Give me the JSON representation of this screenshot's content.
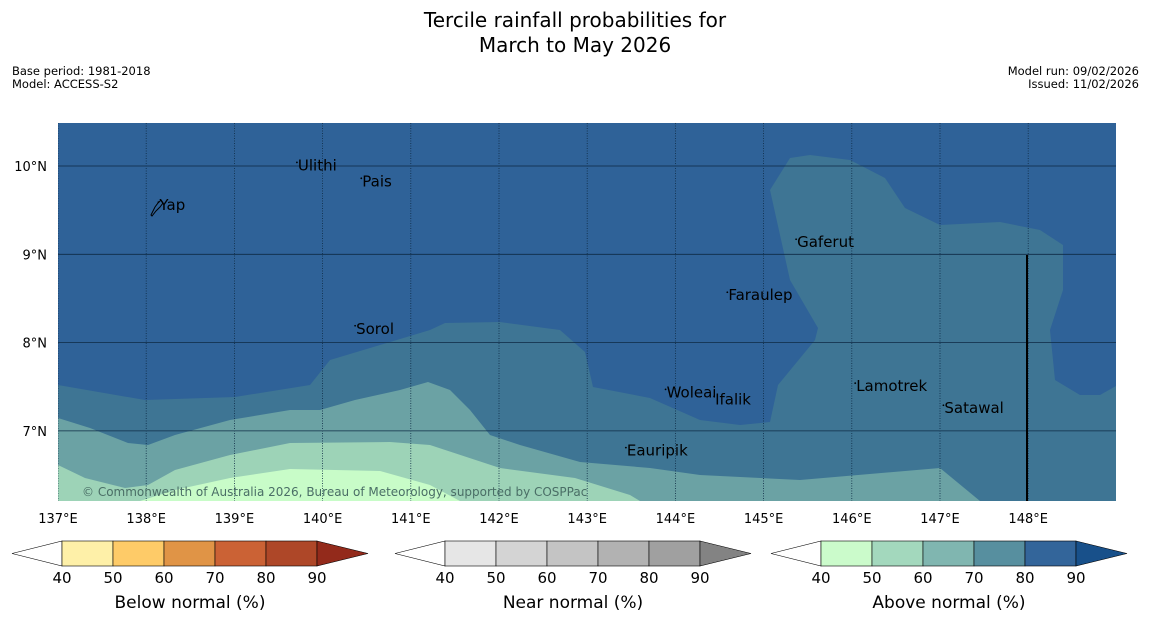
{
  "title": {
    "line1": "Tercile rainfall probabilities for",
    "line2": "March to May 2026"
  },
  "meta_left": {
    "base_period": "Base period: 1981-2018",
    "model": "Model: ACCESS-S2"
  },
  "meta_right": {
    "model_run": "Model run: 09/02/2026",
    "issued": "Issued: 11/02/2026"
  },
  "map": {
    "lon_range": [
      137,
      149
    ],
    "lat_range": [
      6.2,
      10.5
    ],
    "lon_ticks": [
      {
        "value": 137,
        "label": "137°E"
      },
      {
        "value": 138,
        "label": "138°E"
      },
      {
        "value": 139,
        "label": "139°E"
      },
      {
        "value": 140,
        "label": "140°E"
      },
      {
        "value": 141,
        "label": "141°E"
      },
      {
        "value": 142,
        "label": "142°E"
      },
      {
        "value": 143,
        "label": "143°E"
      },
      {
        "value": 144,
        "label": "144°E"
      },
      {
        "value": 145,
        "label": "145°E"
      },
      {
        "value": 146,
        "label": "146°E"
      },
      {
        "value": 147,
        "label": "147°E"
      },
      {
        "value": 148,
        "label": "148°E"
      }
    ],
    "lat_ticks": [
      {
        "value": 10,
        "label": "10°N"
      },
      {
        "value": 9,
        "label": "9°N"
      },
      {
        "value": 8,
        "label": "8°N"
      },
      {
        "value": 7,
        "label": "7°N"
      }
    ],
    "places": [
      {
        "name": "Yap",
        "lon": 138.15,
        "lat": 9.5
      },
      {
        "name": "Ulithi",
        "lon": 139.72,
        "lat": 9.95
      },
      {
        "name": "Pais",
        "lon": 140.45,
        "lat": 9.77
      },
      {
        "name": "Sorol",
        "lon": 140.38,
        "lat": 8.1
      },
      {
        "name": "Gaferut",
        "lon": 145.38,
        "lat": 9.08
      },
      {
        "name": "Faraulep",
        "lon": 144.6,
        "lat": 8.48
      },
      {
        "name": "Woleai",
        "lon": 143.9,
        "lat": 7.38
      },
      {
        "name": "Ifalik",
        "lon": 144.45,
        "lat": 7.3
      },
      {
        "name": "Lamotrek",
        "lon": 146.05,
        "lat": 7.45
      },
      {
        "name": "Satawal",
        "lon": 147.05,
        "lat": 7.2
      },
      {
        "name": "Eauripik",
        "lon": 143.45,
        "lat": 6.72
      }
    ],
    "copyright": "© Commonwealth of Australia 2026, Bureau of Meteorology, supported by COSPPac"
  },
  "colorbars": [
    {
      "id": "below",
      "label": "Below normal (%)",
      "colors": [
        "#ffffff",
        "#fef0a8",
        "#fecb68",
        "#e09446",
        "#cb6235",
        "#ae4728",
        "#932a1b"
      ],
      "ticks": [
        "40",
        "50",
        "60",
        "70",
        "80",
        "90"
      ]
    },
    {
      "id": "near",
      "label": "Near normal (%)",
      "colors": [
        "#ffffff",
        "#e6e6e6",
        "#d4d4d4",
        "#c4c4c4",
        "#b2b2b2",
        "#a0a0a0",
        "#838383"
      ],
      "ticks": [
        "40",
        "50",
        "60",
        "70",
        "80",
        "90"
      ]
    },
    {
      "id": "above",
      "label": "Above normal (%)",
      "colors": [
        "#ffffff",
        "#cbfbcb",
        "#a3d8bd",
        "#80b6b0",
        "#578f9f",
        "#33659a",
        "#18508a"
      ],
      "ticks": [
        "40",
        "50",
        "60",
        "70",
        "80",
        "90"
      ]
    }
  ],
  "zone_colors": {
    "p80": "#2f6298",
    "p70": "#3e7594",
    "p60": "#6ba2a4",
    "p50": "#9dd3b7",
    "p40": "#c8fcc8",
    "grid": "#0e2a44"
  }
}
